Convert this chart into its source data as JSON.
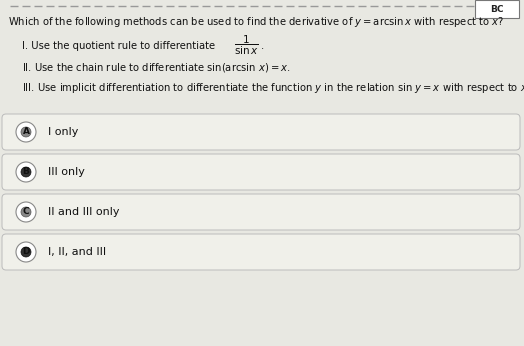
{
  "question": "Which of the following methods can be used to find the derivative of ",
  "question_math": "y = arcsin x",
  "question_end": " with respect to x?",
  "item1_pre": "I. Use the quotient rule to differentiate ",
  "item1_frac": "\\frac{1}{\\sin x}",
  "item1_post": ".",
  "item2": "II. Use the chain rule to differentiate $\\sin(\\arcsin\\, x) = x.$",
  "item3": "III. Use implicit differentiation to differentiate the function $y$ in the relation sin $y = x$ with respect to $x.$",
  "options": [
    {
      "label": "A",
      "text": "I only"
    },
    {
      "label": "B",
      "text": "III only"
    },
    {
      "label": "C",
      "text": "II and III only"
    },
    {
      "label": "D",
      "text": "I, II, and III"
    }
  ],
  "bg_color": "#e8e8e2",
  "box_bg": "#f0f0ea",
  "box_edge": "#bbbbbb",
  "text_color": "#111111",
  "corner_label": "BC",
  "figsize": [
    5.24,
    3.46
  ],
  "dpi": 100
}
